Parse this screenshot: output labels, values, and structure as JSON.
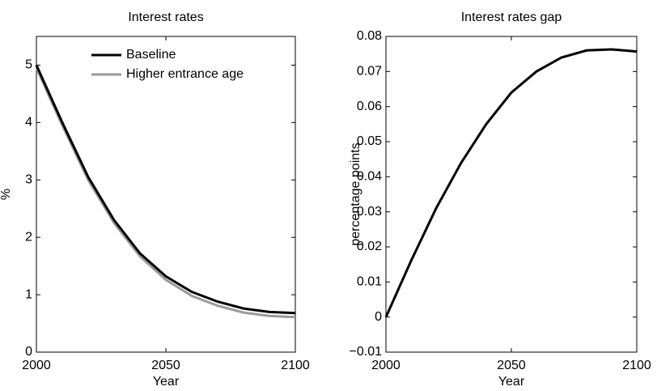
{
  "chart_data": [
    {
      "type": "line",
      "title": "Interest rates",
      "xlabel": "Year",
      "ylabel": "%",
      "x": [
        2000,
        2010,
        2020,
        2030,
        2040,
        2050,
        2060,
        2070,
        2080,
        2090,
        2100
      ],
      "series": [
        {
          "name": "Baseline",
          "color": "#000000",
          "values": [
            5.0,
            4.0,
            3.05,
            2.3,
            1.72,
            1.32,
            1.05,
            0.88,
            0.76,
            0.7,
            0.68
          ]
        },
        {
          "name": "Higher entrance age",
          "color": "#999999",
          "values": [
            4.95,
            3.95,
            3.0,
            2.25,
            1.67,
            1.26,
            0.98,
            0.81,
            0.69,
            0.63,
            0.61
          ]
        }
      ],
      "xlim": [
        2000,
        2100
      ],
      "xticks": [
        2000,
        2050,
        2100
      ],
      "ylim": [
        0,
        5.5
      ],
      "yticks": [
        0,
        1,
        2,
        3,
        4,
        5
      ],
      "legend": "top"
    },
    {
      "type": "line",
      "title": "Interest rates gap",
      "xlabel": "Year",
      "ylabel": "percentage points",
      "x": [
        2000,
        2010,
        2020,
        2030,
        2040,
        2050,
        2060,
        2070,
        2080,
        2090,
        2100
      ],
      "series": [
        {
          "color": "#000000",
          "values": [
            0,
            0.016,
            0.031,
            0.044,
            0.055,
            0.064,
            0.07,
            0.074,
            0.076,
            0.0763,
            0.0757
          ]
        }
      ],
      "xlim": [
        2000,
        2100
      ],
      "xticks": [
        2000,
        2050,
        2100
      ],
      "ylim": [
        -0.01,
        0.08
      ],
      "yticks": [
        {
          "value": -0.01,
          "label": "−0.01"
        },
        0,
        0.01,
        0.02,
        0.03,
        0.04,
        0.05,
        0.06,
        0.07,
        0.08
      ]
    }
  ]
}
